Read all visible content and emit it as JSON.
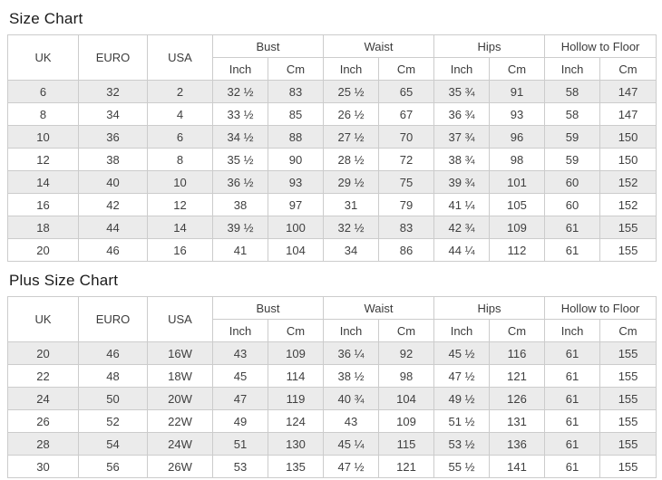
{
  "page_title_section": "Size Chart",
  "colors": {
    "row_stripe": "#ebebeb",
    "table_border": "#cccccc",
    "cell_text": "#404040",
    "title_text": "#1a1a1a",
    "background": "#ffffff"
  },
  "chart_data": [
    {
      "type": "table",
      "title": "Size Chart",
      "column_groups": [
        {
          "label": "UK",
          "span": 1
        },
        {
          "label": "EURO",
          "span": 1
        },
        {
          "label": "USA",
          "span": 1
        },
        {
          "label": "Bust",
          "span": 2
        },
        {
          "label": "Waist",
          "span": 2
        },
        {
          "label": "Hips",
          "span": 2
        },
        {
          "label": "Hollow to Floor",
          "span": 2
        }
      ],
      "unit_headers": [
        "Inch",
        "Cm",
        "Inch",
        "Cm",
        "Inch",
        "Cm",
        "Inch",
        "Cm"
      ],
      "rows": [
        [
          "6",
          "32",
          "2",
          "32 ½",
          "83",
          "25 ½",
          "65",
          "35 ¾",
          "91",
          "58",
          "147"
        ],
        [
          "8",
          "34",
          "4",
          "33 ½",
          "85",
          "26 ½",
          "67",
          "36 ¾",
          "93",
          "58",
          "147"
        ],
        [
          "10",
          "36",
          "6",
          "34 ½",
          "88",
          "27 ½",
          "70",
          "37 ¾",
          "96",
          "59",
          "150"
        ],
        [
          "12",
          "38",
          "8",
          "35 ½",
          "90",
          "28 ½",
          "72",
          "38 ¾",
          "98",
          "59",
          "150"
        ],
        [
          "14",
          "40",
          "10",
          "36 ½",
          "93",
          "29 ½",
          "75",
          "39 ¾",
          "101",
          "60",
          "152"
        ],
        [
          "16",
          "42",
          "12",
          "38",
          "97",
          "31",
          "79",
          "41 ¼",
          "105",
          "60",
          "152"
        ],
        [
          "18",
          "44",
          "14",
          "39 ½",
          "100",
          "32 ½",
          "83",
          "42 ¾",
          "109",
          "61",
          "155"
        ],
        [
          "20",
          "46",
          "16",
          "41",
          "104",
          "34",
          "86",
          "44 ¼",
          "112",
          "61",
          "155"
        ]
      ]
    },
    {
      "type": "table",
      "title": "Plus Size Chart",
      "column_groups": [
        {
          "label": "UK",
          "span": 1
        },
        {
          "label": "EURO",
          "span": 1
        },
        {
          "label": "USA",
          "span": 1
        },
        {
          "label": "Bust",
          "span": 2
        },
        {
          "label": "Waist",
          "span": 2
        },
        {
          "label": "Hips",
          "span": 2
        },
        {
          "label": "Hollow to Floor",
          "span": 2
        }
      ],
      "unit_headers": [
        "Inch",
        "Cm",
        "Inch",
        "Cm",
        "Inch",
        "Cm",
        "Inch",
        "Cm"
      ],
      "rows": [
        [
          "20",
          "46",
          "16W",
          "43",
          "109",
          "36 ¼",
          "92",
          "45 ½",
          "116",
          "61",
          "155"
        ],
        [
          "22",
          "48",
          "18W",
          "45",
          "114",
          "38 ½",
          "98",
          "47 ½",
          "121",
          "61",
          "155"
        ],
        [
          "24",
          "50",
          "20W",
          "47",
          "119",
          "40 ¾",
          "104",
          "49 ½",
          "126",
          "61",
          "155"
        ],
        [
          "26",
          "52",
          "22W",
          "49",
          "124",
          "43",
          "109",
          "51 ½",
          "131",
          "61",
          "155"
        ],
        [
          "28",
          "54",
          "24W",
          "51",
          "130",
          "45 ¼",
          "115",
          "53 ½",
          "136",
          "61",
          "155"
        ],
        [
          "30",
          "56",
          "26W",
          "53",
          "135",
          "47 ½",
          "121",
          "55 ½",
          "141",
          "61",
          "155"
        ]
      ]
    }
  ]
}
